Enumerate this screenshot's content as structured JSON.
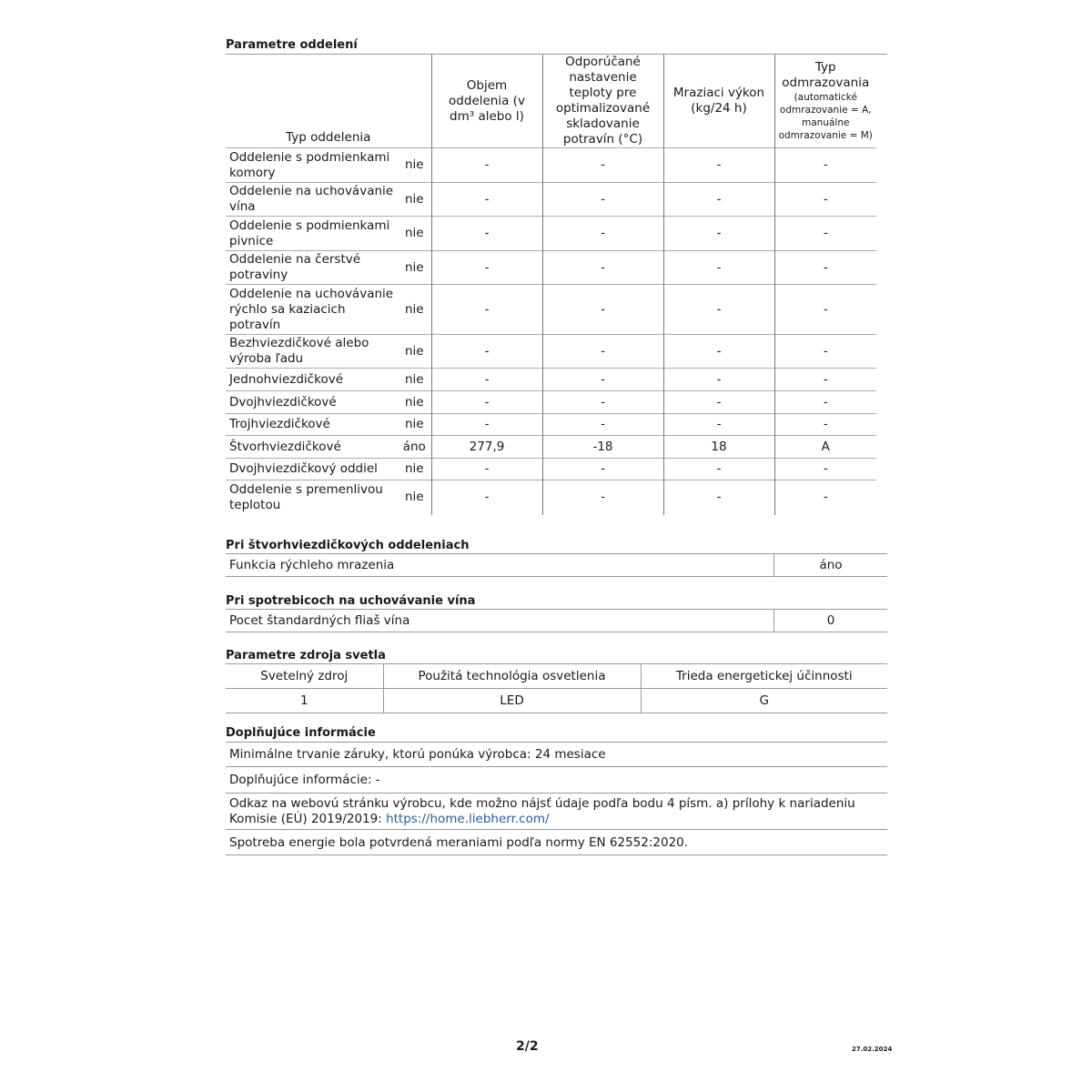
{
  "compartments": {
    "title": "Parametre oddelení",
    "headers": {
      "type": "Typ oddelenia",
      "volume": "Objem oddelenia (v dm³ alebo l)",
      "temp": "Odporúčané nastavenie teploty pre optimalizované skladovanie potravín (°C)",
      "freezing": "Mraziaci výkon (kg/24 h)",
      "defrost_title": "Typ odmrazovania",
      "defrost_note": "(automatické odmrazovanie = A, manuálne odmrazovanie = M)"
    },
    "rows": [
      {
        "name": "Oddelenie s podmienkami komory",
        "present": "nie",
        "volume": "-",
        "temp": "-",
        "freezing": "-",
        "defrost": "-"
      },
      {
        "name": "Oddelenie na uchovávanie vína",
        "present": "nie",
        "volume": "-",
        "temp": "-",
        "freezing": "-",
        "defrost": "-"
      },
      {
        "name": "Oddelenie s podmienkami pivnice",
        "present": "nie",
        "volume": "-",
        "temp": "-",
        "freezing": "-",
        "defrost": "-"
      },
      {
        "name": "Oddelenie na čerstvé potraviny",
        "present": "nie",
        "volume": "-",
        "temp": "-",
        "freezing": "-",
        "defrost": "-"
      },
      {
        "name": "Oddelenie na uchovávanie rýchlo sa kaziacich potravín",
        "present": "nie",
        "volume": "-",
        "temp": "-",
        "freezing": "-",
        "defrost": "-"
      },
      {
        "name": "Bezhviezdičkové alebo výroba ľadu",
        "present": "nie",
        "volume": "-",
        "temp": "-",
        "freezing": "-",
        "defrost": "-"
      },
      {
        "name": "Jednohviezdičkové",
        "present": "nie",
        "volume": "-",
        "temp": "-",
        "freezing": "-",
        "defrost": "-"
      },
      {
        "name": "Dvojhviezdičkové",
        "present": "nie",
        "volume": "-",
        "temp": "-",
        "freezing": "-",
        "defrost": "-"
      },
      {
        "name": "Trojhviezdičkové",
        "present": "nie",
        "volume": "-",
        "temp": "-",
        "freezing": "-",
        "defrost": "-"
      },
      {
        "name": "Štvorhviezdičkové",
        "present": "áno",
        "volume": "277,9",
        "temp": "-18",
        "freezing": "18",
        "defrost": "A"
      },
      {
        "name": "Dvojhviezdičkový oddiel",
        "present": "nie",
        "volume": "-",
        "temp": "-",
        "freezing": "-",
        "defrost": "-"
      },
      {
        "name": "Oddelenie s premenlivou teplotou",
        "present": "nie",
        "volume": "-",
        "temp": "-",
        "freezing": "-",
        "defrost": "-"
      }
    ]
  },
  "four_star": {
    "title": "Pri štvorhviezdičkových oddeleniach",
    "label": "Funkcia rýchleho mrazenia",
    "value": "áno"
  },
  "wine": {
    "title": "Pri spotrebicoch na uchovávanie vína",
    "label": "Pocet štandardných fliaš vína",
    "value": "0"
  },
  "light": {
    "title": "Parametre zdroja svetla",
    "headers": [
      "Svetelný zdroj",
      "Použitá technológia osvetlenia",
      "Trieda energetickej účinnosti"
    ],
    "values": [
      "1",
      "LED",
      "G"
    ]
  },
  "additional": {
    "title": "Doplňujúce informácie",
    "warranty": "Minimálne trvanie záruky, ktorú ponúka výrobca: 24 mesiace",
    "extra": "Doplňujúce informácie: -",
    "link_text": "Odkaz na webovú stránku výrobcu, kde možno nájsť údaje podľa bodu 4 písm. a) prílohy k nariadeniu Komisie (EÚ) 2019/2019: ",
    "link": "https://home.liebherr.com/",
    "energy": "Spotreba energie bola potvrdená meraniami podľa normy EN 62552:2020."
  },
  "footer": {
    "page": "2/2",
    "date": "27.02.2024"
  }
}
